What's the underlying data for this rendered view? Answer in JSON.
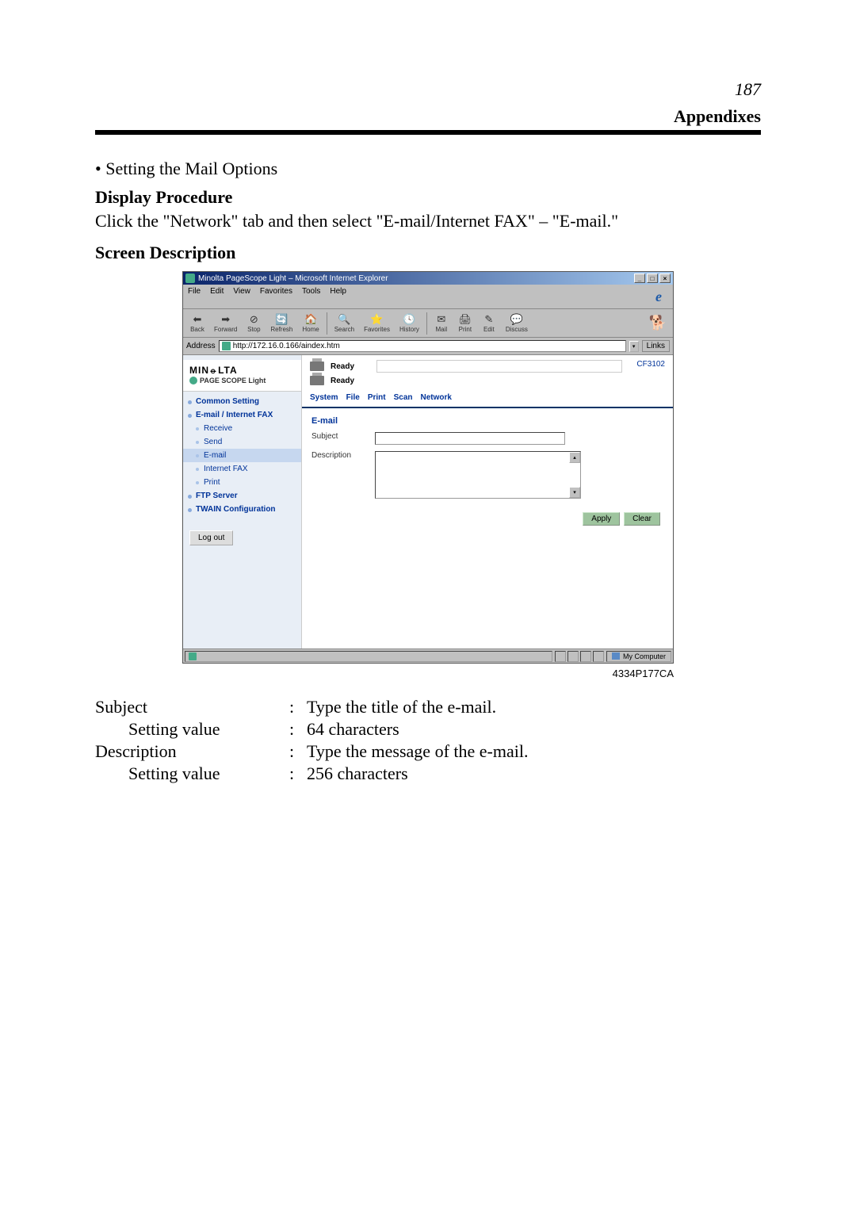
{
  "page": {
    "number": "187",
    "section": "Appendixes"
  },
  "bullet": "• Setting the Mail Options",
  "headings": {
    "display_proc": "Display Procedure",
    "display_proc_text": "Click the \"Network\" tab and then select \"E-mail/Internet FAX\" – \"E-mail.\"",
    "screen_desc": "Screen Description"
  },
  "browser": {
    "title": "Minolta PageScope Light – Microsoft Internet Explorer",
    "menu": {
      "file": "File",
      "edit": "Edit",
      "view": "View",
      "favorites": "Favorites",
      "tools": "Tools",
      "help": "Help"
    },
    "toolbar": {
      "back": "Back",
      "forward": "Forward",
      "stop": "Stop",
      "refresh": "Refresh",
      "home": "Home",
      "search": "Search",
      "favorites": "Favorites",
      "history": "History",
      "mail": "Mail",
      "print": "Print",
      "edit": "Edit",
      "discuss": "Discuss"
    },
    "address_label": "Address",
    "address_url": "http://172.16.0.166/aindex.htm",
    "links": "Links",
    "brand": {
      "name": "MIN⦵LTA",
      "sub": "PAGE SCOPE Light"
    },
    "nav": {
      "common": "Common Setting",
      "email_fax": "E-mail / Internet FAX",
      "receive": "Receive",
      "send": "Send",
      "email": "E-mail",
      "ifax": "Internet FAX",
      "print": "Print",
      "ftp": "FTP Server",
      "twain": "TWAIN Configuration"
    },
    "logout": "Log out",
    "status_ready1": "Ready",
    "status_ready2": "Ready",
    "model": "CF3102",
    "tabs": {
      "system": "System",
      "file": "File",
      "print": "Print",
      "scan": "Scan",
      "network": "Network"
    },
    "form": {
      "title": "E-mail",
      "subject": "Subject",
      "description": "Description",
      "apply": "Apply",
      "clear": "Clear"
    },
    "statusbar": {
      "mycomputer": "My Computer"
    }
  },
  "caption": "4334P177CA",
  "defs": {
    "subject": "Subject",
    "subject_val": "Type the title of the e-mail.",
    "subject_setting": "Setting value",
    "subject_setting_val": "64 characters",
    "desc": "Description",
    "desc_val": "Type the message of the e-mail.",
    "desc_setting": "Setting value",
    "desc_setting_val": "256 characters"
  }
}
